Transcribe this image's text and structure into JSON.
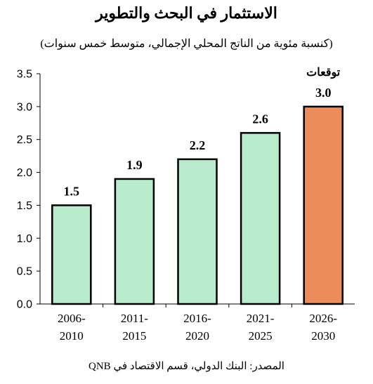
{
  "chart_data": {
    "type": "bar",
    "title": "الاستثمار في البحث والتطوير",
    "subtitle": "(كنسبة مئوية من الناتج المحلي الإجمالي، متوسط خمس سنوات)",
    "categories": [
      [
        "2006-",
        "2010"
      ],
      [
        "2011-",
        "2015"
      ],
      [
        "2016-",
        "2020"
      ],
      [
        "2021-",
        "2025"
      ],
      [
        "2026-",
        "2030"
      ]
    ],
    "values": [
      1.5,
      1.9,
      2.2,
      2.6,
      3.0
    ],
    "value_labels": [
      "1.5",
      "1.9",
      "2.2",
      "2.6",
      "3.0"
    ],
    "yticks": [
      "0.0",
      "0.5",
      "1.0",
      "1.5",
      "2.0",
      "2.5",
      "3.0",
      "3.5"
    ],
    "ylim": [
      0,
      3.5
    ],
    "forecast_label": "توقعات",
    "forecast_index": 4,
    "grid": false,
    "colors": {
      "actual": "#b8eccc",
      "forecast": "#ec8c5c",
      "outline": "#000000"
    },
    "source": "المصدر: البنك الدولي، قسم الاقتصاد في QNB"
  }
}
